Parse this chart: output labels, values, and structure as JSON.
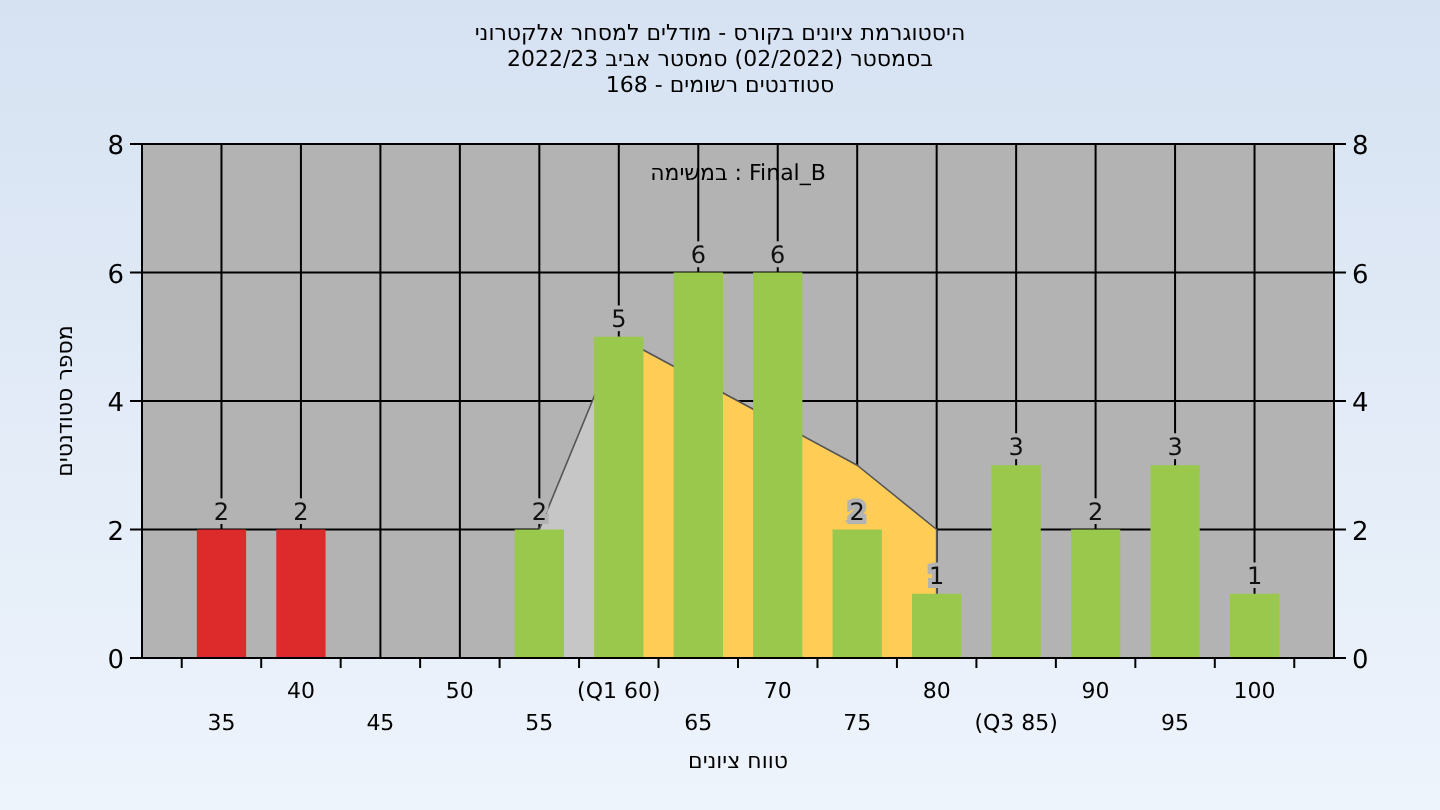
{
  "chart_data": {
    "type": "bar",
    "title": "היסטוגרמת ציונים בקורס - מודלים למסחר אלקטרוני",
    "subtitle": [
      "בסמסטר (02/2022) סמסטר אביב 2022/23",
      "סטודנטים רשומים - 168"
    ],
    "xlabel": "טווח ציונים",
    "ylabel": "מספר סטודנטים",
    "annotations": [
      "במשימה : Final_B"
    ],
    "categories": [
      "35",
      "40",
      "45",
      "50",
      "55",
      "(Q1 60)",
      "65",
      "70",
      "75",
      "80",
      "(Q3 85)",
      "90",
      "95",
      "100"
    ],
    "series": [
      {
        "type": "area",
        "color": "#c6c6c6",
        "values": [
          null,
          null,
          null,
          null,
          2,
          5,
          null,
          null,
          null,
          null,
          null,
          null,
          null,
          null
        ]
      },
      {
        "type": "area",
        "color": "#ffcc55",
        "values": [
          null,
          null,
          null,
          null,
          null,
          5,
          null,
          null,
          3,
          2,
          null,
          null,
          null,
          null
        ]
      },
      {
        "colors": [
          "#dd2a2a",
          "#dd2a2a",
          "#99c84c",
          "#99c84c",
          "#99c84c",
          "#99c84c",
          "#99c84c",
          "#99c84c",
          "#99c84c",
          "#99c84c",
          "#99c84c",
          "#99c84c",
          "#99c84c",
          "#99c84c"
        ],
        "values": [
          2,
          2,
          0,
          0,
          2,
          5,
          6,
          6,
          2,
          1,
          3,
          2,
          3,
          1
        ],
        "value_labels": [
          "2",
          "2",
          null,
          null,
          "2",
          "5",
          "6",
          "6",
          "2",
          "1",
          "3",
          "2",
          "3",
          "1"
        ]
      }
    ],
    "ylim": [
      0,
      8
    ],
    "yticks": [
      0,
      2,
      4,
      6,
      8
    ],
    "y2lim": [
      0,
      8
    ],
    "y2ticks": [
      0,
      2,
      4,
      6,
      8
    ],
    "grid": true
  }
}
